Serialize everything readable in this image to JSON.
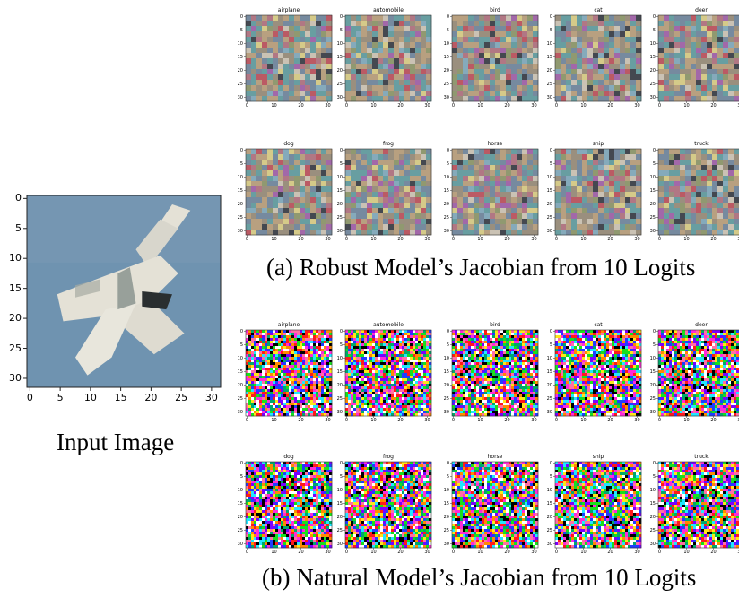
{
  "input_panel": {
    "caption": "Input Image",
    "x_ticks": [
      "0",
      "5",
      "10",
      "15",
      "20",
      "25",
      "30"
    ],
    "y_ticks": [
      "0",
      "5",
      "10",
      "15",
      "20",
      "25",
      "30"
    ],
    "description_colors": {
      "sky": "#6f93b0",
      "plane_body": "#e4e1d6",
      "plane_shadow": "#7f8a86",
      "cockpit": "#2a2f30"
    }
  },
  "group_robust": {
    "caption": "(a) Robust Model’s Jacobian from 10 Logits",
    "style": "smooth-noise",
    "classes": [
      "airplane",
      "automobile",
      "bird",
      "cat",
      "deer",
      "dog",
      "frog",
      "horse",
      "ship",
      "truck"
    ],
    "x_ticks": [
      "0",
      "10",
      "20",
      "30"
    ],
    "y_ticks": [
      "0",
      "5",
      "10",
      "15",
      "20",
      "25",
      "30"
    ]
  },
  "group_natural": {
    "caption": "(b) Natural Model’s Jacobian from 10 Logits",
    "style": "high-frequency-noise",
    "classes": [
      "airplane",
      "automobile",
      "bird",
      "cat",
      "deer",
      "dog",
      "frog",
      "horse",
      "ship",
      "truck"
    ],
    "x_ticks": [
      "0",
      "10",
      "20",
      "30"
    ],
    "y_ticks": [
      "0",
      "5",
      "10",
      "15",
      "20",
      "25",
      "30"
    ]
  }
}
